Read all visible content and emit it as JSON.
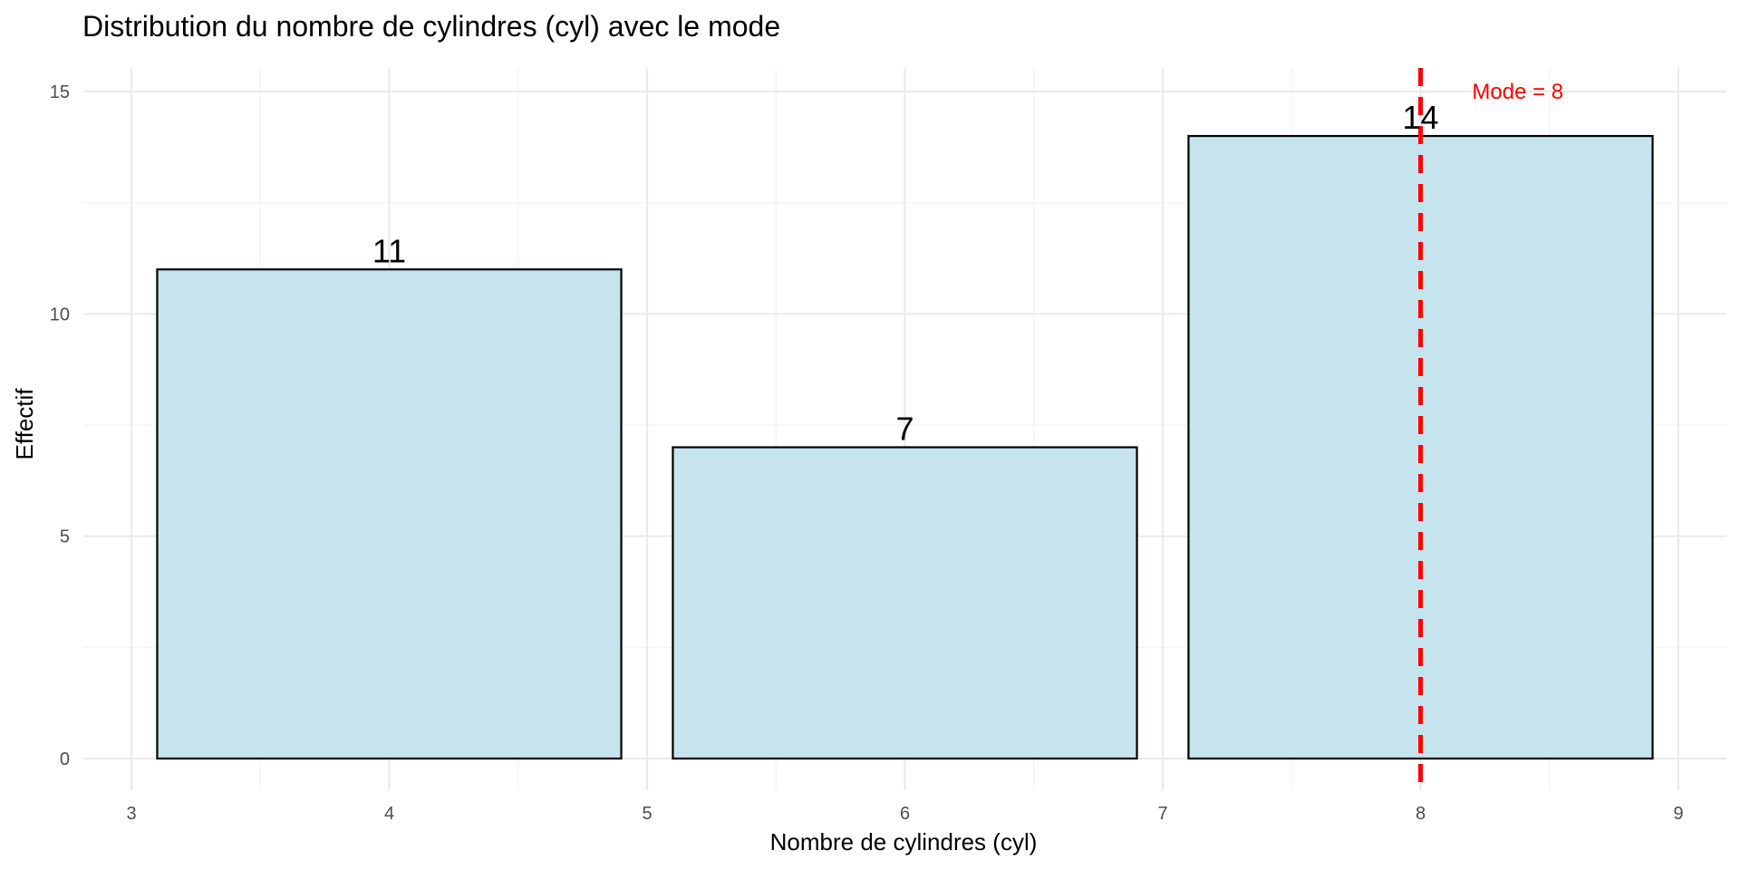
{
  "chart_data": {
    "type": "bar",
    "title": "Distribution du nombre de cylindres (cyl) avec le mode",
    "xlabel": "Nombre de cylindres (cyl)",
    "ylabel": "Effectif",
    "xlim": [
      3,
      9
    ],
    "ylim": [
      0,
      15
    ],
    "x_ticks": [
      "3",
      "4",
      "5",
      "6",
      "7",
      "8",
      "9"
    ],
    "y_ticks": [
      "0",
      "5",
      "10",
      "15"
    ],
    "categories": [
      4,
      6,
      8
    ],
    "values": [
      11,
      7,
      14
    ],
    "bar_width": 1.8,
    "grid": true,
    "bar_fill": "#c6e4ee",
    "bar_stroke": "#000000",
    "mode_line": {
      "x": 8,
      "color": "#ff0000",
      "style": "dashed"
    },
    "annotation": {
      "text": "Mode = 8",
      "x": 8.2,
      "y": 15,
      "color": "#ff0000"
    }
  }
}
